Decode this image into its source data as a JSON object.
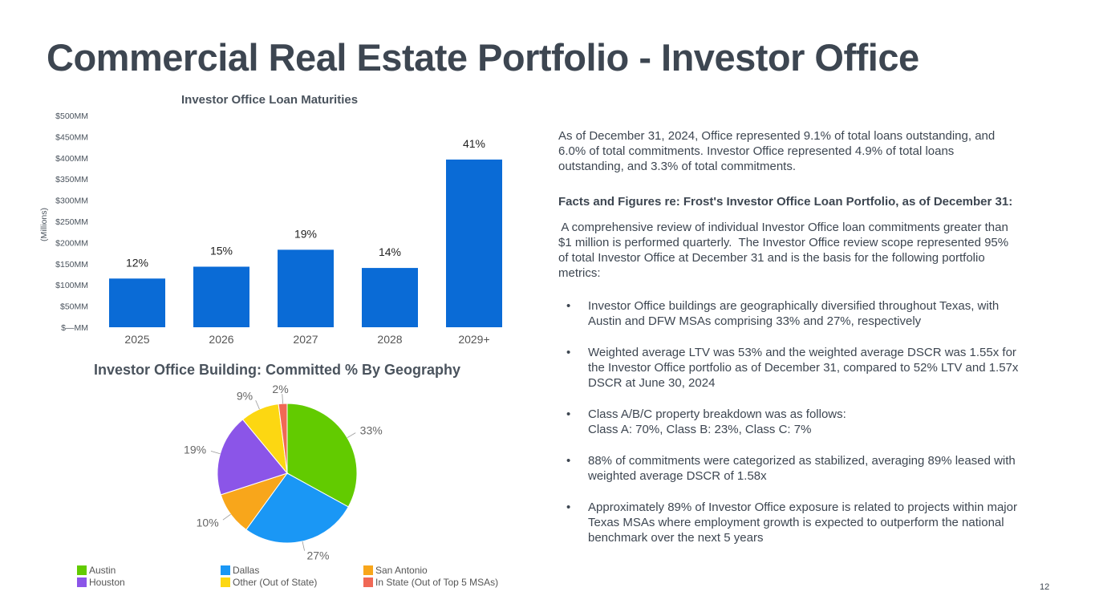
{
  "title": "Commercial Real Estate Portfolio - Investor Office",
  "page_number": "12",
  "colors": {
    "bar": "#0a6bd6",
    "austin": "#62cb00",
    "dallas": "#1a97f5",
    "san_antonio": "#f8a61b",
    "houston": "#8b55e8",
    "other": "#fcd712",
    "in_state": "#f06855"
  },
  "chart_data": [
    {
      "type": "bar",
      "title": "Investor Office Loan Maturities",
      "ylabel": "(Millions)",
      "categories": [
        "2025",
        "2026",
        "2027",
        "2028",
        "2029+"
      ],
      "values": [
        115,
        143,
        183,
        140,
        396
      ],
      "data_labels": [
        "12%",
        "15%",
        "19%",
        "14%",
        "41%"
      ],
      "yticks": [
        0,
        50,
        100,
        150,
        200,
        250,
        300,
        350,
        400,
        450,
        500
      ],
      "ytick_labels": [
        "$—MM",
        "$50MM",
        "$100MM",
        "$150MM",
        "$200MM",
        "$250MM",
        "$300MM",
        "$350MM",
        "$400MM",
        "$450MM",
        "$500MM"
      ],
      "ylim": [
        0,
        500
      ],
      "grid": false
    },
    {
      "type": "pie",
      "title": "Investor Office Building: Committed % By Geography",
      "labels": [
        "Austin",
        "Dallas",
        "San Antonio",
        "Houston",
        "Other (Out of State)",
        "In State (Out of Top 5 MSAs)"
      ],
      "values": [
        33,
        27,
        10,
        19,
        9,
        2
      ],
      "data_labels": [
        "33%",
        "27%",
        "10%",
        "19%",
        "9%",
        "2%"
      ],
      "legend_position": "bottom"
    }
  ],
  "text": {
    "intro_lines": [
      "As of December 31, 2024, Office represented 9.1% of total loans outstanding, and",
      "6.0% of total commitments. Investor Office represented 4.9% of total loans",
      "outstanding, and 3.3% of total commitments."
    ],
    "facts_heading": "Facts and Figures re: Frost's Investor Office Loan Portfolio, as of December 31:",
    "review_lines": [
      " A comprehensive review of individual Investor Office loan commitments greater than",
      "$1 million is performed quarterly.  The Investor Office review scope represented 95%",
      "of total Investor Office at December 31 and is the basis for the following portfolio",
      "metrics:"
    ],
    "bullet_symbol": "•",
    "bullets": [
      [
        "Investor Office buildings are geographically diversified throughout Texas, with",
        "Austin and DFW MSAs comprising 33% and 27%, respectively"
      ],
      [
        "Weighted average LTV was 53% and the weighted average DSCR was 1.55x for",
        "the Investor Office portfolio as of December 31, compared to 52% LTV and 1.57x",
        "DSCR at June 30, 2024"
      ],
      [
        "Class A/B/C property breakdown was as follows:",
        "Class A: 70%, Class B: 23%, Class C: 7%"
      ],
      [
        "88% of commitments were categorized as stabilized, averaging 89% leased with",
        "weighted average DSCR of 1.58x"
      ],
      [
        "Approximately 89% of Investor Office exposure is related to projects within major",
        "Texas MSAs where employment growth is expected to outperform the national",
        "benchmark over the next 5 years"
      ]
    ]
  }
}
